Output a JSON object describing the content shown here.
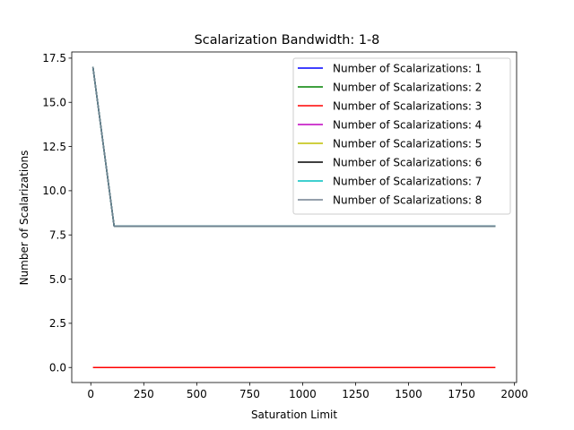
{
  "chart_data": {
    "type": "line",
    "title": "Scalarization Bandwidth: 1-8",
    "xlabel": "Saturation Limit",
    "ylabel": "Number of Scalarizations",
    "xlim": [
      -90,
      2010
    ],
    "ylim": [
      -0.85,
      17.85
    ],
    "xticks": [
      0,
      250,
      500,
      750,
      1000,
      1250,
      1500,
      1750,
      2000
    ],
    "yticks": [
      0.0,
      2.5,
      5.0,
      7.5,
      10.0,
      12.5,
      15.0,
      17.5
    ],
    "xtick_labels": [
      "0",
      "250",
      "500",
      "750",
      "1000",
      "1250",
      "1500",
      "1750",
      "2000"
    ],
    "ytick_labels": [
      "0.0",
      "2.5",
      "5.0",
      "7.5",
      "10.0",
      "12.5",
      "15.0",
      "17.5"
    ],
    "grid": false,
    "legend_position": "top-right",
    "x": [
      10,
      110,
      210,
      310,
      410,
      510,
      610,
      710,
      810,
      910,
      1010,
      1110,
      1210,
      1310,
      1410,
      1510,
      1610,
      1710,
      1810,
      1910
    ],
    "series": [
      {
        "name": "Number of Scalarizations: 1",
        "color": "#0000ff",
        "values": [
          17,
          8,
          8,
          8,
          8,
          8,
          8,
          8,
          8,
          8,
          8,
          8,
          8,
          8,
          8,
          8,
          8,
          8,
          8,
          8
        ]
      },
      {
        "name": "Number of Scalarizations: 2",
        "color": "#008000",
        "values": [
          17,
          8,
          8,
          8,
          8,
          8,
          8,
          8,
          8,
          8,
          8,
          8,
          8,
          8,
          8,
          8,
          8,
          8,
          8,
          8
        ]
      },
      {
        "name": "Number of Scalarizations: 3",
        "color": "#ff0000",
        "values": [
          0,
          0,
          0,
          0,
          0,
          0,
          0,
          0,
          0,
          0,
          0,
          0,
          0,
          0,
          0,
          0,
          0,
          0,
          0,
          0
        ]
      },
      {
        "name": "Number of Scalarizations: 4",
        "color": "#bf00bf",
        "values": [
          17,
          8,
          8,
          8,
          8,
          8,
          8,
          8,
          8,
          8,
          8,
          8,
          8,
          8,
          8,
          8,
          8,
          8,
          8,
          8
        ]
      },
      {
        "name": "Number of Scalarizations: 5",
        "color": "#bfbf00",
        "values": [
          17,
          8,
          8,
          8,
          8,
          8,
          8,
          8,
          8,
          8,
          8,
          8,
          8,
          8,
          8,
          8,
          8,
          8,
          8,
          8
        ]
      },
      {
        "name": "Number of Scalarizations: 6",
        "color": "#000000",
        "values": [
          17,
          8,
          8,
          8,
          8,
          8,
          8,
          8,
          8,
          8,
          8,
          8,
          8,
          8,
          8,
          8,
          8,
          8,
          8,
          8
        ]
      },
      {
        "name": "Number of Scalarizations: 7",
        "color": "#00bfbf",
        "values": [
          17,
          8,
          8,
          8,
          8,
          8,
          8,
          8,
          8,
          8,
          8,
          8,
          8,
          8,
          8,
          8,
          8,
          8,
          8,
          8
        ]
      },
      {
        "name": "Number of Scalarizations: 8",
        "color": "#708090",
        "values": [
          17,
          8,
          8,
          8,
          8,
          8,
          8,
          8,
          8,
          8,
          8,
          8,
          8,
          8,
          8,
          8,
          8,
          8,
          8,
          8
        ]
      }
    ]
  }
}
